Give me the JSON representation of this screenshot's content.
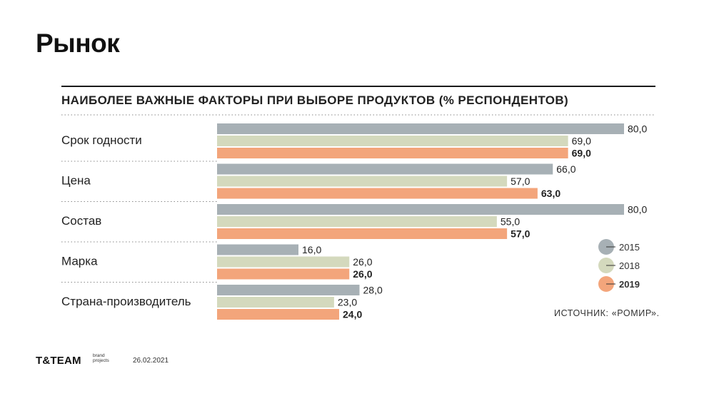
{
  "page": {
    "title": "Рынок",
    "source": "ИСТОЧНИК: «РОМИР».",
    "logo": "T&TEAM",
    "logo_sub": "brand projects",
    "date": "26.02.2021"
  },
  "chart_data": {
    "type": "bar",
    "orientation": "horizontal",
    "title": "НАИБОЛЕЕ ВАЖНЫЕ ФАКТОРЫ ПРИ ВЫБОРЕ ПРОДУКТОВ (% РЕСПОНДЕНТОВ)",
    "categories": [
      "Срок годности",
      "Цена",
      "Состав",
      "Марка",
      "Страна-производитель"
    ],
    "series": [
      {
        "name": "2015",
        "values": [
          80.0,
          66.0,
          80.0,
          16.0,
          28.0
        ],
        "color": "#a7b0b5",
        "bold": false
      },
      {
        "name": "2018",
        "values": [
          69.0,
          57.0,
          55.0,
          26.0,
          23.0
        ],
        "color": "#d4d9bd",
        "bold": false
      },
      {
        "name": "2019",
        "values": [
          69.0,
          63.0,
          57.0,
          26.0,
          24.0
        ],
        "color": "#f3a57b",
        "bold": true
      }
    ],
    "xlim": [
      0,
      80
    ],
    "value_format": "decimal-comma-1",
    "legend_position": "right",
    "grid": false
  }
}
